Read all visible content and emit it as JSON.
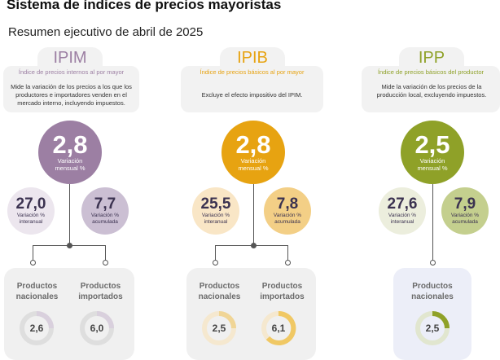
{
  "header": {
    "title": "Sistema de índices de precios mayoristas",
    "subtitle": "Resumen ejecutivo de abril de 2025"
  },
  "colors": {
    "ipim": "#9c7fa3",
    "ipim_light": "#ece6ee",
    "ipim_mid": "#cbbfd3",
    "ipib": "#e7a311",
    "ipib_light": "#f9e6c6",
    "ipib_mid": "#f3cf86",
    "ipp": "#8fa128",
    "ipp_light": "#eceedd",
    "ipp_mid": "#c4cf8e"
  },
  "indices": [
    {
      "code": "IPIM",
      "name": "Índice de precios internos al por mayor",
      "description": "Mide la variación de los precios a los que los productores e importadores venden en el mercado interno, incluyendo impuestos.",
      "monthly": "2,8",
      "monthly_label_1": "Variación",
      "monthly_label_2": "mensual %",
      "yoy": "27,0",
      "yoy_label_1": "Variación %",
      "yoy_label_2": "interanual",
      "acc": "7,7",
      "acc_label_1": "Variación %",
      "acc_label_2": "acumulada",
      "products": [
        {
          "label_1": "Productos",
          "label_2": "nacionales",
          "value": "2,6"
        },
        {
          "label_1": "Productos",
          "label_2": "importados",
          "value": "6,0"
        }
      ]
    },
    {
      "code": "IPIB",
      "name": "Índice de precios básicos al por mayor",
      "description": "Excluye el efecto impositivo del IPIM.",
      "monthly": "2,8",
      "monthly_label_1": "Variación",
      "monthly_label_2": "mensual %",
      "yoy": "25,5",
      "yoy_label_1": "Variación %",
      "yoy_label_2": "interanual",
      "acc": "7,8",
      "acc_label_1": "Variación %",
      "acc_label_2": "acumulada",
      "products": [
        {
          "label_1": "Productos",
          "label_2": "nacionales",
          "value": "2,5"
        },
        {
          "label_1": "Productos",
          "label_2": "importados",
          "value": "6,1"
        }
      ]
    },
    {
      "code": "IPP",
      "name": "Índice de precios básicos del productor",
      "description": "Mide la variación de los precios de la producción local, excluyendo impuestos.",
      "monthly": "2,5",
      "monthly_label_1": "Variación",
      "monthly_label_2": "mensual %",
      "yoy": "27,6",
      "yoy_label_1": "Variación %",
      "yoy_label_2": "interanual",
      "acc": "7,9",
      "acc_label_1": "Variación %",
      "acc_label_2": "acumulada",
      "products": [
        {
          "label_1": "Productos",
          "label_2": "nacionales",
          "value": "2,5"
        }
      ]
    }
  ]
}
